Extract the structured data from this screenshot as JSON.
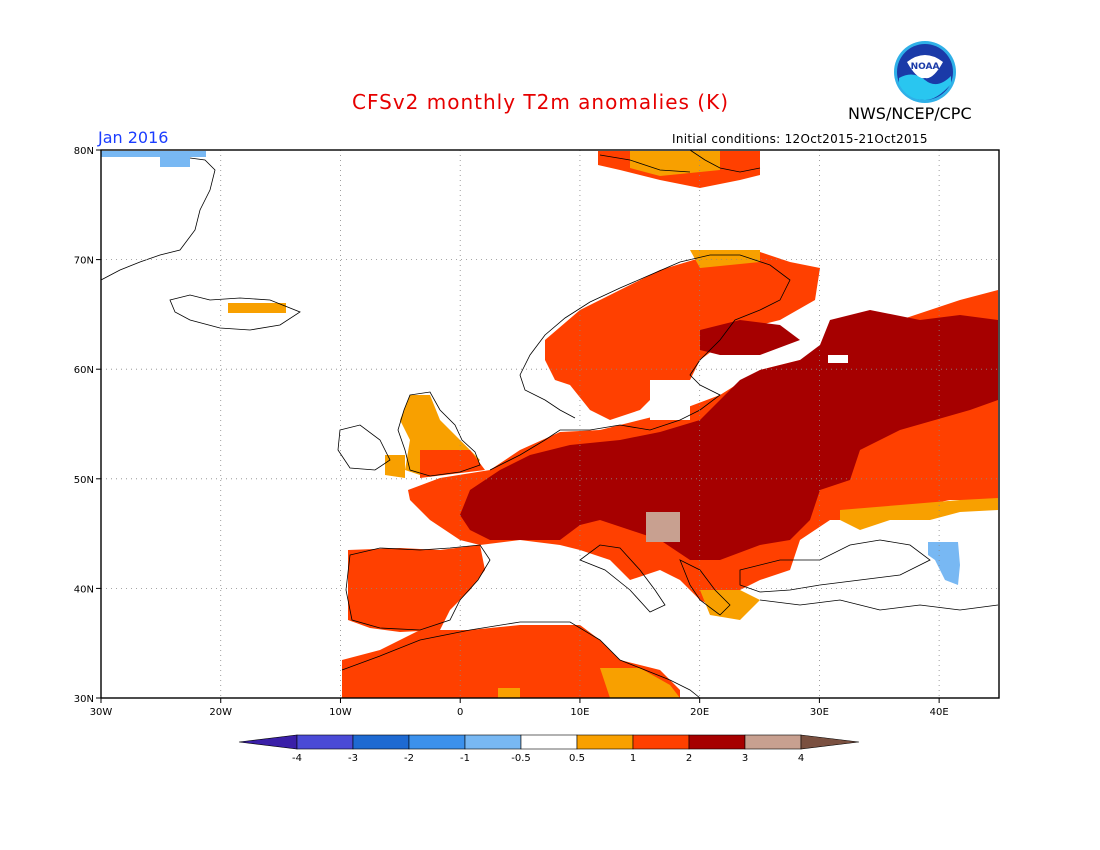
{
  "title": "CFSv2 monthly T2m anomalies (K)",
  "agency": "NWS/NCEP/CPC",
  "period": "Jan 2016",
  "initial_conditions": "Initial conditions: 12Oct2015-21Oct2015",
  "logo": {
    "icon": "noaa-logo-icon",
    "text": "NOAA"
  },
  "map": {
    "lon_range": [
      -30,
      45
    ],
    "lat_range": [
      30,
      80
    ],
    "x_ticks": [
      {
        "value": -30,
        "label": "30W"
      },
      {
        "value": -20,
        "label": "20W"
      },
      {
        "value": -10,
        "label": "10W"
      },
      {
        "value": 0,
        "label": "0"
      },
      {
        "value": 10,
        "label": "10E"
      },
      {
        "value": 20,
        "label": "20E"
      },
      {
        "value": 30,
        "label": "30E"
      },
      {
        "value": 40,
        "label": "40E"
      }
    ],
    "y_ticks": [
      {
        "value": 80,
        "label": "80N"
      },
      {
        "value": 70,
        "label": "70N"
      },
      {
        "value": 60,
        "label": "60N"
      },
      {
        "value": 50,
        "label": "50N"
      },
      {
        "value": 40,
        "label": "40N"
      },
      {
        "value": 30,
        "label": "30N"
      }
    ],
    "grid": true
  },
  "colorbar": {
    "labels": [
      "-4",
      "-3",
      "-2",
      "-1",
      "-0.5",
      "0.5",
      "1",
      "2",
      "3",
      "4"
    ],
    "colors": [
      "#3a1fa8",
      "#4a4ad6",
      "#1e6ad2",
      "#3c91ec",
      "#78b8f3",
      "#ffffff",
      "#f8a000",
      "#ff4000",
      "#a60000",
      "#c8a090",
      "#7a5040"
    ]
  }
}
